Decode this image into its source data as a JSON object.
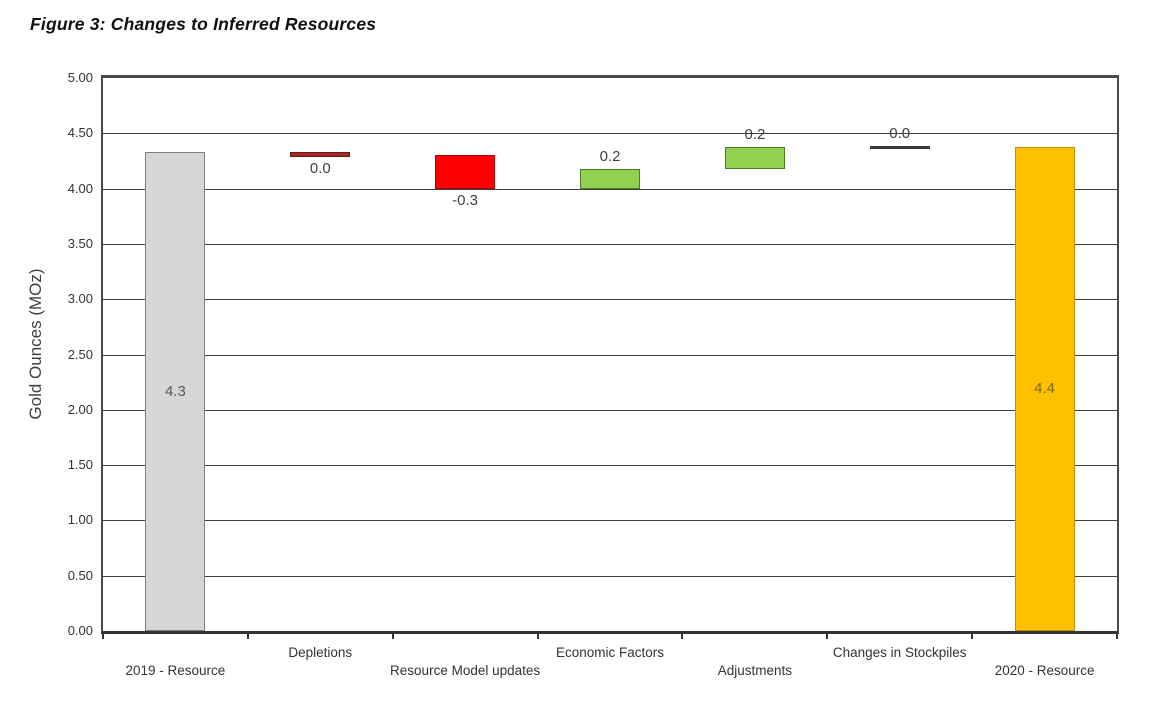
{
  "figure": {
    "title": "Figure 3: Changes to Inferred Resources"
  },
  "chart_data": {
    "type": "bar",
    "subtype": "waterfall",
    "title": "Figure 3: Changes to Inferred Resources",
    "xlabel": "",
    "ylabel": "Gold Ounces (MOz)",
    "ylim": [
      0,
      5
    ],
    "grid": "horizontal",
    "legend": "none",
    "ytick_values": [
      5.0,
      4.5,
      4.0,
      3.5,
      3.0,
      2.5,
      2.0,
      1.5,
      1.0,
      0.5,
      0.0
    ],
    "ytick_labels": [
      "5.00",
      "4.50",
      "4.00",
      "3.50",
      "3.00",
      "2.50",
      "2.00",
      "1.50",
      "1.00",
      "0.50",
      "0.00"
    ],
    "categories": [
      "2019 - Resource",
      "Depletions",
      "Resource Model updates",
      "Economic Factors",
      "Adjustments",
      "Changes in Stockpiles",
      "2020 - Resource"
    ],
    "values": [
      4.3,
      0.0,
      -0.3,
      0.2,
      0.2,
      0.0,
      4.4
    ],
    "value_labels": [
      "4.3",
      "0.0",
      "-0.3",
      "0.2",
      "0.2",
      "0.0",
      "4.4"
    ],
    "label_position": [
      "inside",
      "below",
      "below",
      "above",
      "above",
      "above",
      "inside"
    ],
    "levels": [
      [
        0,
        4.33
      ],
      [
        4.285,
        4.335
      ],
      [
        3.995,
        4.3
      ],
      [
        3.995,
        4.175
      ],
      [
        4.175,
        4.375
      ],
      [
        4.362,
        4.388
      ],
      [
        0,
        4.38
      ]
    ],
    "bar_fill_colors": [
      "#D6D6D6",
      "#A52828",
      "#FE0000",
      "#92D050",
      "#92D050",
      "#3A3A3A",
      "#FFC000"
    ],
    "bar_border_colors": [
      "#7F7F7F",
      "#701818",
      "#B00000",
      "#4E7A28",
      "#4E7A28",
      "#3A3A3A",
      "#BF9000"
    ],
    "value_label_colors": [
      "#595959",
      "#404040",
      "#404040",
      "#404040",
      "#404040",
      "#404040",
      "#7A651F"
    ],
    "category_row": [
      "lower",
      "upper",
      "lower",
      "upper",
      "lower",
      "upper",
      "lower"
    ]
  },
  "colors": {
    "background": "#FFFFFF",
    "plot_border": "#4A4A4A",
    "gridline": "#404040",
    "axis_text": "#333333",
    "gray_bar": "#D6D6D6",
    "dark_red_bar": "#A52828",
    "red_bar": "#FE0000",
    "green_bar": "#92D050",
    "stockpile_line": "#3A3A3A",
    "gold_bar": "#FFC000"
  }
}
